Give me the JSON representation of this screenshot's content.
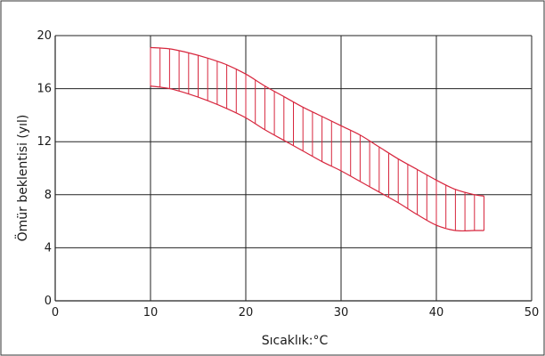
{
  "chart_data": {
    "type": "area",
    "title": "",
    "xlabel": "Sıcaklık:°C",
    "ylabel": "Ömür beklentisi (yıl)",
    "xlim": [
      0,
      50
    ],
    "ylim": [
      0,
      20
    ],
    "x_ticks": [
      0,
      10,
      20,
      30,
      40,
      50
    ],
    "y_ticks": [
      0,
      4,
      8,
      12,
      16,
      20
    ],
    "grid": true,
    "legend": "none",
    "band_color": "#d7263d",
    "series": [
      {
        "name": "",
        "role": "upper",
        "x": [
          10,
          12,
          14,
          16,
          18,
          20,
          22,
          24,
          26,
          28,
          30,
          32,
          34,
          36,
          38,
          40,
          42,
          44,
          45
        ],
        "values": [
          19.1,
          19.0,
          18.7,
          18.3,
          17.8,
          17.1,
          16.2,
          15.4,
          14.6,
          13.9,
          13.2,
          12.5,
          11.6,
          10.7,
          9.9,
          9.1,
          8.4,
          8.0,
          7.9
        ]
      },
      {
        "name": "",
        "role": "lower",
        "x": [
          10,
          12,
          14,
          16,
          18,
          20,
          22,
          24,
          26,
          28,
          30,
          32,
          34,
          36,
          38,
          40,
          42,
          44,
          45
        ],
        "values": [
          16.2,
          16.0,
          15.6,
          15.1,
          14.5,
          13.8,
          12.9,
          12.1,
          11.3,
          10.5,
          9.8,
          9.0,
          8.2,
          7.4,
          6.5,
          5.7,
          5.3,
          5.3,
          5.3
        ]
      }
    ]
  }
}
